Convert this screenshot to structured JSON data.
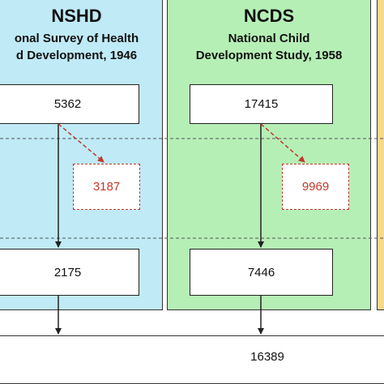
{
  "colors": {
    "nshd_panel": "#bfeaf6",
    "ncds_panel": "#b6efb6",
    "third_panel": "#f6d98a",
    "dropout_red": "#c0392b",
    "line": "#222222"
  },
  "panels": {
    "nshd": {
      "title": "NSHD",
      "subtitle_line1": "onal Survey of Health",
      "subtitle_line2": "d Development, 1946",
      "initial": "5362",
      "dropped": "3187",
      "retained": "2175"
    },
    "ncds": {
      "title": "NCDS",
      "subtitle_line1": "National Child",
      "subtitle_line2": "Development Study, 1958",
      "initial": "17415",
      "dropped": "9969",
      "retained": "7446"
    }
  },
  "pooled": {
    "total": "16389"
  }
}
